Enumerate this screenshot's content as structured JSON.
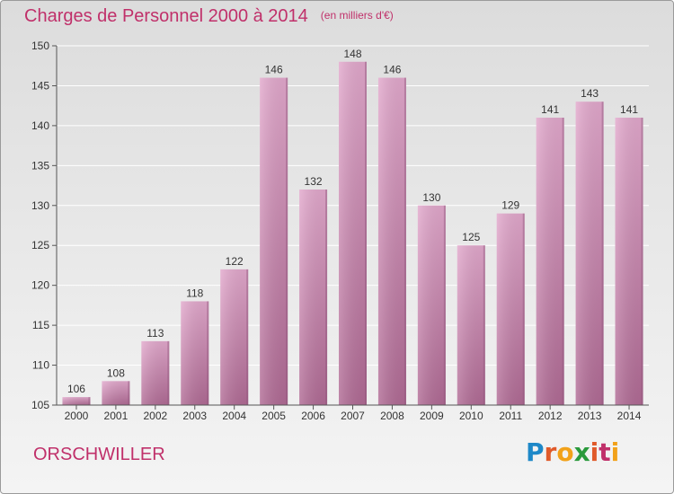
{
  "title": {
    "main": "Charges de Personnel 2000 à 2014",
    "unit": "(en milliers d'€)"
  },
  "commune": "ORSCHWILLER",
  "logo": {
    "text": "Proxiti",
    "letters": [
      "P",
      "r",
      "o",
      "x",
      "i",
      "t",
      "i"
    ],
    "colors": [
      "#1e88c8",
      "#e05a2a",
      "#f2a21a",
      "#2a9a3c",
      "#e05a2a",
      "#c0306a",
      "#f2a21a"
    ]
  },
  "colors": {
    "title": "#c0306a",
    "bar_top": "#e2a8cc",
    "bar_bottom": "#b06a94",
    "axis": "#555555"
  },
  "chart_data": {
    "type": "bar",
    "categories": [
      "2000",
      "2001",
      "2002",
      "2003",
      "2004",
      "2005",
      "2006",
      "2007",
      "2008",
      "2009",
      "2010",
      "2011",
      "2012",
      "2013",
      "2014"
    ],
    "values": [
      106,
      108,
      113,
      118,
      122,
      146,
      132,
      148,
      146,
      130,
      125,
      129,
      141,
      143,
      141
    ],
    "data_labels": [
      "106",
      "108",
      "113",
      "118",
      "122",
      "146",
      "132",
      "148",
      "146",
      "130",
      "125",
      "129",
      "141",
      "143",
      "141"
    ],
    "yticks": [
      105,
      110,
      115,
      120,
      125,
      130,
      135,
      140,
      145,
      150
    ],
    "ylim": [
      105,
      150
    ],
    "grid": true,
    "legend": "none"
  }
}
